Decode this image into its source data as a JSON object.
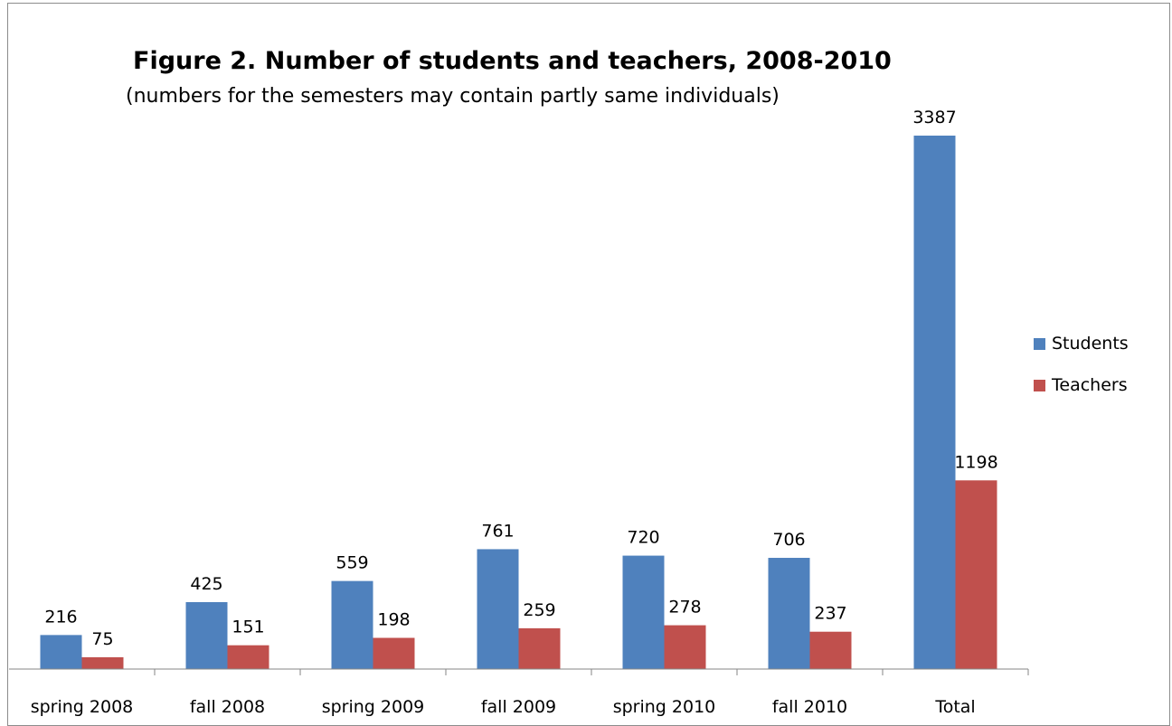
{
  "chart_data": {
    "type": "bar",
    "title": "Figure 2. Number of students and teachers, 2008-2010",
    "subtitle": "(numbers for the semesters may contain partly same individuals)",
    "categories": [
      "spring 2008",
      "fall 2008",
      "spring 2009",
      "fall 2009",
      "spring 2010",
      "fall 2010",
      "Total"
    ],
    "series": [
      {
        "name": "Students",
        "color": "#4f81bd",
        "values": [
          216,
          425,
          559,
          761,
          720,
          706,
          3387
        ]
      },
      {
        "name": "Teachers",
        "color": "#c0504d",
        "values": [
          75,
          151,
          198,
          259,
          278,
          237,
          1198
        ]
      }
    ],
    "ylim": [
      0,
      3500
    ],
    "legend_position": "right",
    "grid": false,
    "data_labels": true
  }
}
